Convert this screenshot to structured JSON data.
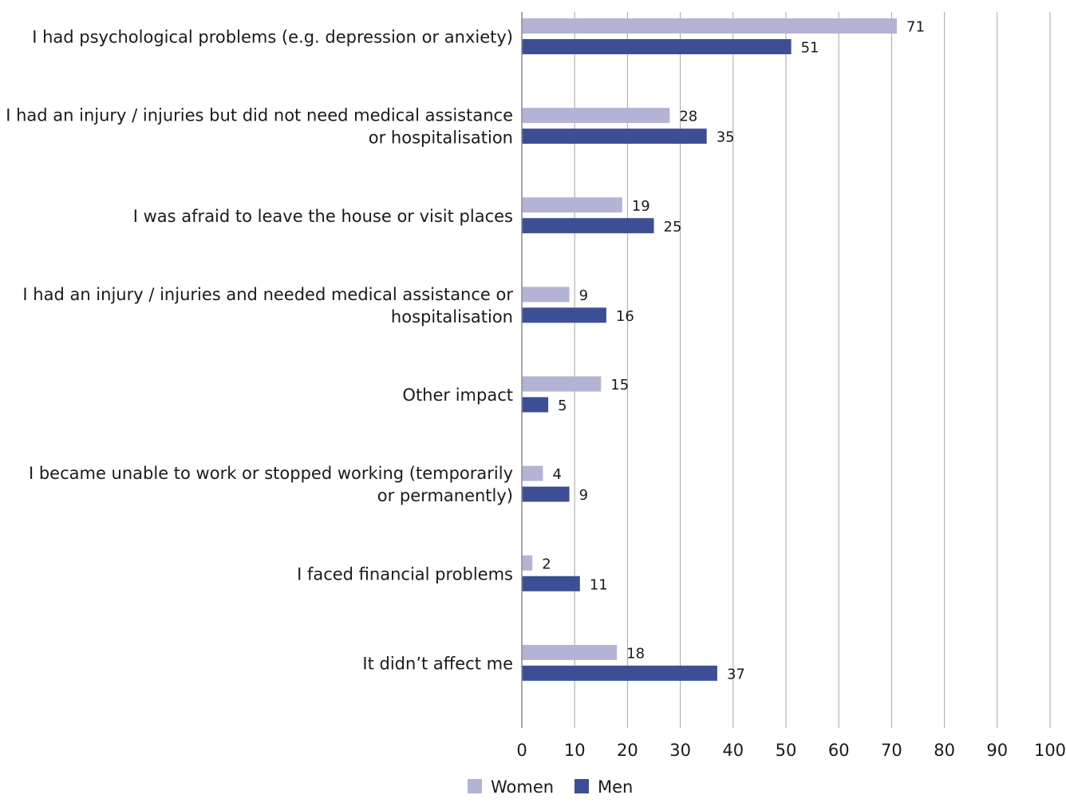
{
  "chart_data": {
    "type": "bar",
    "orientation": "horizontal",
    "categories": [
      [
        "I had psychological problems (e.g. depression or anxiety)"
      ],
      [
        "I had an injury / injuries but did not need medical assistance",
        "or hospitalisation"
      ],
      [
        "I was afraid to leave the house or visit places"
      ],
      [
        "I had an injury / injuries and needed medical assistance or",
        "hospitalisation"
      ],
      [
        "Other impact"
      ],
      [
        "I became unable to work or stopped working (temporarily",
        "or permanently)"
      ],
      [
        "I faced financial problems"
      ],
      [
        "It didn’t affect me"
      ]
    ],
    "series": [
      {
        "name": "Women",
        "color": "#b3b3d6",
        "values": [
          71,
          28,
          19,
          9,
          15,
          4,
          2,
          18
        ]
      },
      {
        "name": "Men",
        "color": "#3d4f94",
        "values": [
          51,
          35,
          25,
          16,
          5,
          9,
          11,
          37
        ]
      }
    ],
    "xlim": [
      0,
      100
    ],
    "xticks": [
      0,
      10,
      20,
      30,
      40,
      50,
      60,
      70,
      80,
      90,
      100
    ],
    "grid": true,
    "legend_position": "bottom",
    "title": "",
    "xlabel": "",
    "ylabel": ""
  }
}
